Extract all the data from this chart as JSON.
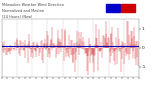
{
  "title": "Milwaukee Weather Wind Direction",
  "subtitle1": "Normalized and Median",
  "subtitle2": "(24 Hours) (New)",
  "n_points": 288,
  "median_value": 0.1,
  "y_min": -1.5,
  "y_max": 1.5,
  "x_min": 0,
  "x_max": 288,
  "line_color": "#cc0000",
  "median_color": "#0000bb",
  "bg_color": "#ffffff",
  "grid_color": "#bbbbbb",
  "title_color": "#444444",
  "legend_box1_color": "#0000cc",
  "legend_box2_color": "#cc0000",
  "y_ticks": [
    -1.0,
    0.0,
    1.0
  ],
  "y_tick_labels": [
    "-1",
    "0",
    "1"
  ],
  "seed": 99,
  "num_vgrid": 9
}
